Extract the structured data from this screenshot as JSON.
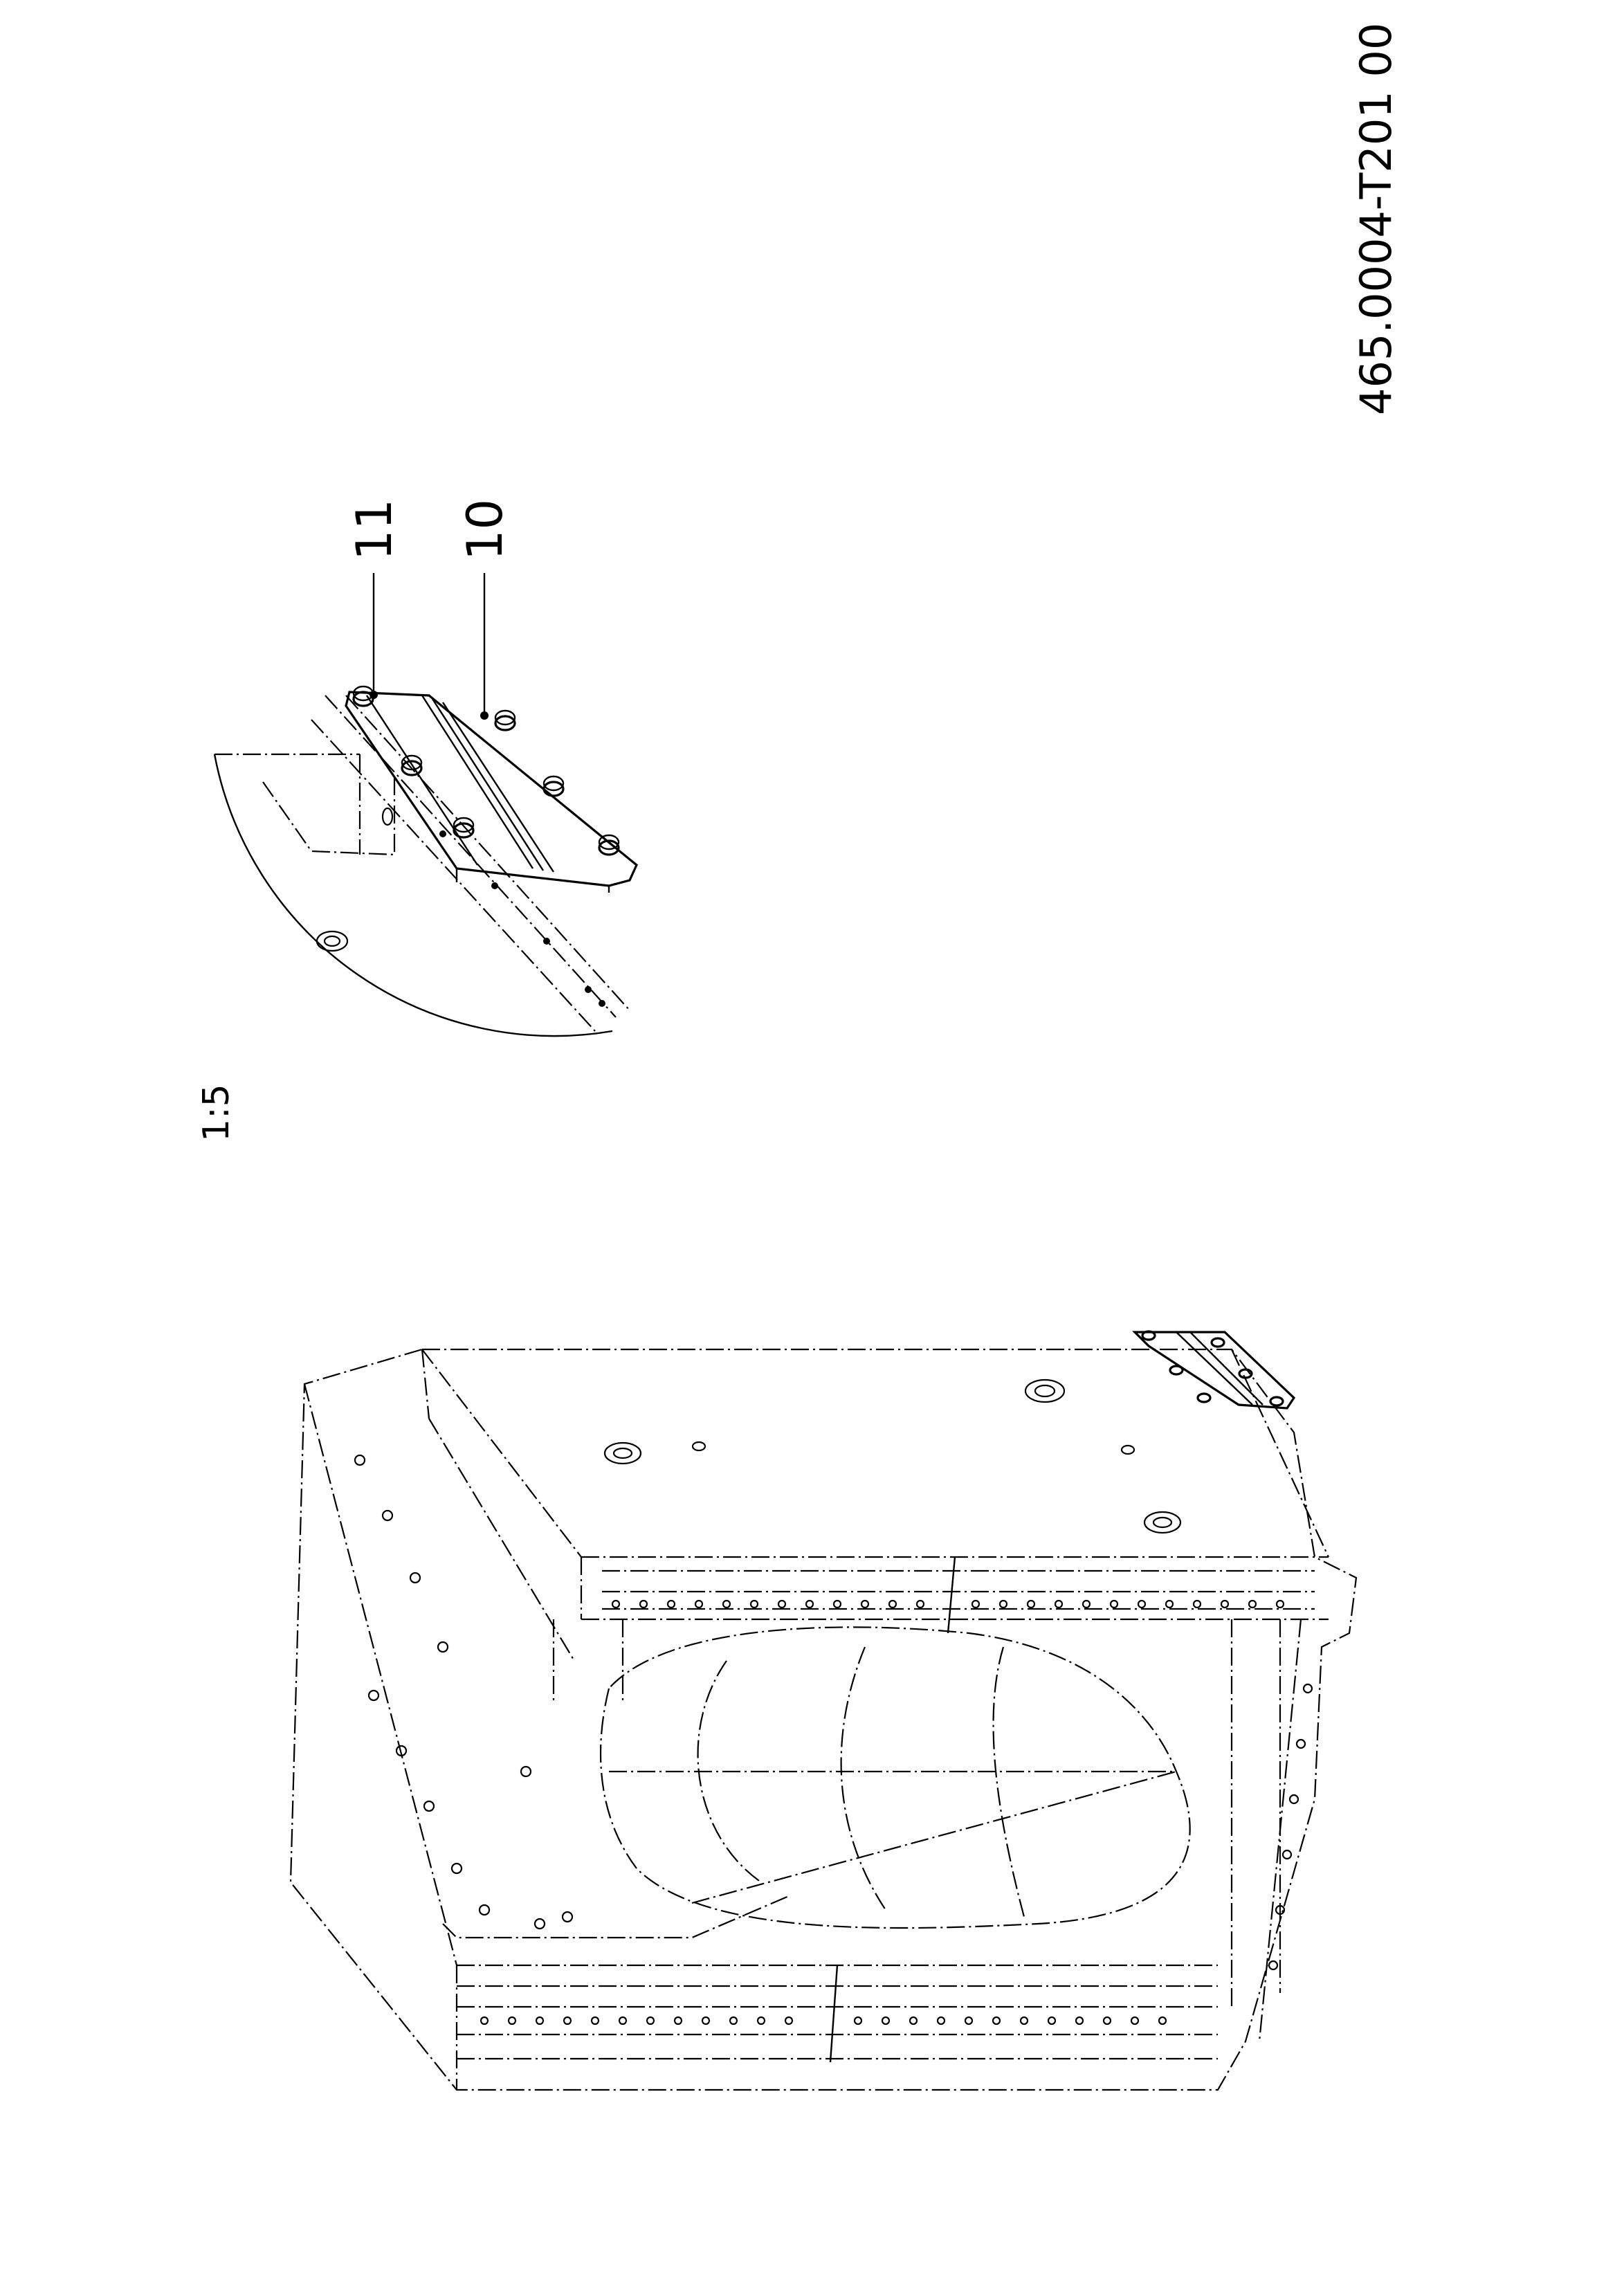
{
  "drawing": {
    "number": "465.0004-T201 00",
    "detail_scale": "1:5",
    "callouts": [
      {
        "id": "callout-11",
        "label": "11"
      },
      {
        "id": "callout-10",
        "label": "10"
      }
    ]
  }
}
